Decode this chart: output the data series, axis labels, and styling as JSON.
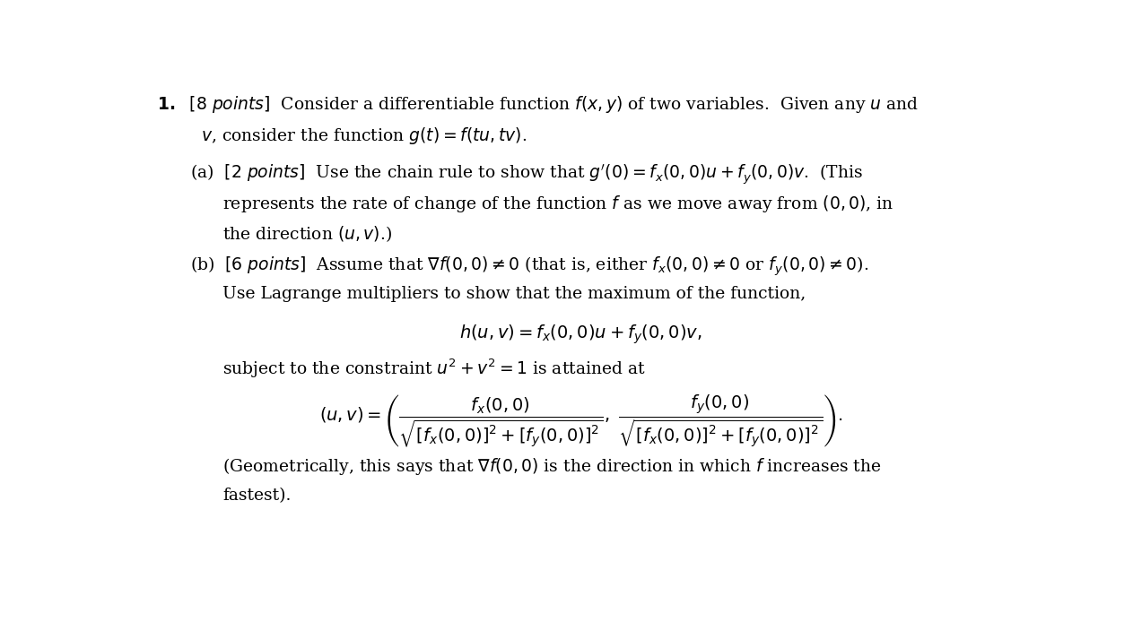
{
  "bg_color": "#ffffff",
  "text_color": "#000000",
  "fig_width": 12.63,
  "fig_height": 7.13,
  "font_size": 13.5
}
